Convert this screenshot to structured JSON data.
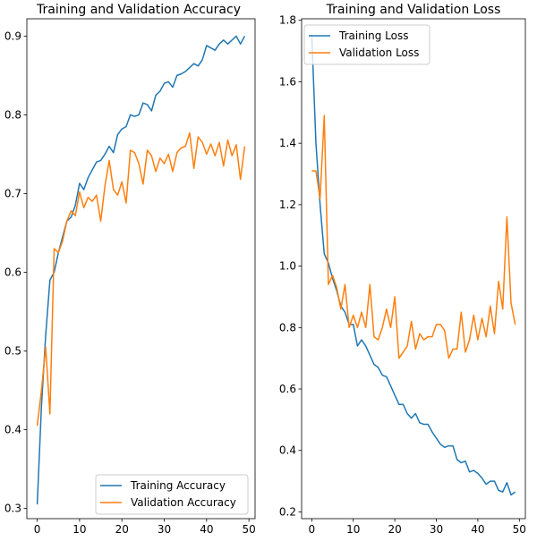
{
  "colors": {
    "training": "#1f77b4",
    "validation": "#ff7f0e",
    "axis": "#000000",
    "legend_border": "#cccccc"
  },
  "chart_data": [
    {
      "type": "line",
      "title": "Training and Validation Accuracy",
      "xlabel": "",
      "ylabel": "",
      "xlim": [
        -2.45,
        51.45
      ],
      "ylim": [
        0.287,
        0.922
      ],
      "x_ticks": [
        0,
        10,
        20,
        30,
        40,
        50
      ],
      "y_ticks": [
        0.3,
        0.4,
        0.5,
        0.6,
        0.7,
        0.8,
        0.9
      ],
      "y_tick_labels": [
        "0.3",
        "0.4",
        "0.5",
        "0.6",
        "0.7",
        "0.8",
        "0.9"
      ],
      "grid": false,
      "legend_position": "lower-right",
      "series": [
        {
          "name": "Training Accuracy",
          "color": "#1f77b4",
          "x": [
            0,
            1,
            2,
            3,
            4,
            5,
            6,
            7,
            8,
            9,
            10,
            11,
            12,
            13,
            14,
            15,
            16,
            17,
            18,
            19,
            20,
            21,
            22,
            23,
            24,
            25,
            26,
            27,
            28,
            29,
            30,
            31,
            32,
            33,
            34,
            35,
            36,
            37,
            38,
            39,
            40,
            41,
            42,
            43,
            44,
            45,
            46,
            47,
            48,
            49
          ],
          "values": [
            0.305,
            0.43,
            0.52,
            0.59,
            0.6,
            0.625,
            0.645,
            0.665,
            0.67,
            0.685,
            0.713,
            0.705,
            0.72,
            0.73,
            0.74,
            0.742,
            0.75,
            0.76,
            0.752,
            0.775,
            0.782,
            0.785,
            0.8,
            0.798,
            0.8,
            0.815,
            0.813,
            0.805,
            0.825,
            0.83,
            0.84,
            0.842,
            0.835,
            0.85,
            0.852,
            0.855,
            0.86,
            0.865,
            0.862,
            0.87,
            0.888,
            0.885,
            0.882,
            0.89,
            0.895,
            0.89,
            0.895,
            0.9,
            0.89,
            0.9
          ]
        },
        {
          "name": "Validation Accuracy",
          "color": "#ff7f0e",
          "x": [
            0,
            1,
            2,
            3,
            4,
            5,
            6,
            7,
            8,
            9,
            10,
            11,
            12,
            13,
            14,
            15,
            16,
            17,
            18,
            19,
            20,
            21,
            22,
            23,
            24,
            25,
            26,
            27,
            28,
            29,
            30,
            31,
            32,
            33,
            34,
            35,
            36,
            37,
            38,
            39,
            40,
            41,
            42,
            43,
            44,
            45,
            46,
            47,
            48,
            49
          ],
          "values": [
            0.405,
            0.45,
            0.505,
            0.42,
            0.63,
            0.625,
            0.64,
            0.665,
            0.678,
            0.672,
            0.702,
            0.682,
            0.695,
            0.69,
            0.698,
            0.665,
            0.71,
            0.742,
            0.705,
            0.698,
            0.715,
            0.688,
            0.755,
            0.752,
            0.738,
            0.712,
            0.755,
            0.748,
            0.728,
            0.745,
            0.738,
            0.75,
            0.728,
            0.752,
            0.758,
            0.76,
            0.777,
            0.732,
            0.772,
            0.765,
            0.75,
            0.763,
            0.748,
            0.765,
            0.735,
            0.768,
            0.748,
            0.762,
            0.718,
            0.76
          ]
        }
      ]
    },
    {
      "type": "line",
      "title": "Training and Validation Loss",
      "xlabel": "",
      "ylabel": "",
      "xlim": [
        -2.45,
        51.45
      ],
      "ylim": [
        0.178,
        1.805
      ],
      "x_ticks": [
        0,
        10,
        20,
        30,
        40,
        50
      ],
      "y_ticks": [
        0.2,
        0.4,
        0.6,
        0.8,
        1.0,
        1.2,
        1.4,
        1.6,
        1.8
      ],
      "y_tick_labels": [
        "0.2",
        "0.4",
        "0.6",
        "0.8",
        "1.0",
        "1.2",
        "1.4",
        "1.6",
        "1.8"
      ],
      "grid": false,
      "legend_position": "upper-left",
      "series": [
        {
          "name": "Training Loss",
          "color": "#1f77b4",
          "x": [
            0,
            1,
            2,
            3,
            4,
            5,
            6,
            7,
            8,
            9,
            10,
            11,
            12,
            13,
            14,
            15,
            16,
            17,
            18,
            19,
            20,
            21,
            22,
            23,
            24,
            25,
            26,
            27,
            28,
            29,
            30,
            31,
            32,
            33,
            34,
            35,
            36,
            37,
            38,
            39,
            40,
            41,
            42,
            43,
            44,
            45,
            46,
            47,
            48,
            49
          ],
          "values": [
            1.75,
            1.4,
            1.2,
            1.04,
            1.01,
            0.96,
            0.92,
            0.87,
            0.85,
            0.81,
            0.81,
            0.74,
            0.76,
            0.74,
            0.71,
            0.68,
            0.67,
            0.645,
            0.64,
            0.61,
            0.58,
            0.55,
            0.55,
            0.52,
            0.505,
            0.52,
            0.49,
            0.485,
            0.485,
            0.46,
            0.44,
            0.42,
            0.41,
            0.415,
            0.415,
            0.37,
            0.36,
            0.365,
            0.33,
            0.335,
            0.325,
            0.31,
            0.29,
            0.3,
            0.3,
            0.27,
            0.265,
            0.295,
            0.255,
            0.265
          ]
        },
        {
          "name": "Validation Loss",
          "color": "#ff7f0e",
          "x": [
            0,
            1,
            2,
            3,
            4,
            5,
            6,
            7,
            8,
            9,
            10,
            11,
            12,
            13,
            14,
            15,
            16,
            17,
            18,
            19,
            20,
            21,
            22,
            23,
            24,
            25,
            26,
            27,
            28,
            29,
            30,
            31,
            32,
            33,
            34,
            35,
            36,
            37,
            38,
            39,
            40,
            41,
            42,
            43,
            44,
            45,
            46,
            47,
            48,
            49
          ],
          "values": [
            1.31,
            1.31,
            1.22,
            1.49,
            0.94,
            0.97,
            0.93,
            0.86,
            0.94,
            0.8,
            0.84,
            0.8,
            0.85,
            0.8,
            0.94,
            0.77,
            0.76,
            0.8,
            0.86,
            0.8,
            0.9,
            0.7,
            0.72,
            0.74,
            0.82,
            0.73,
            0.78,
            0.76,
            0.77,
            0.77,
            0.81,
            0.81,
            0.79,
            0.7,
            0.73,
            0.73,
            0.85,
            0.72,
            0.76,
            0.84,
            0.76,
            0.83,
            0.77,
            0.87,
            0.78,
            0.95,
            0.86,
            1.16,
            0.88,
            0.81
          ]
        }
      ]
    }
  ]
}
